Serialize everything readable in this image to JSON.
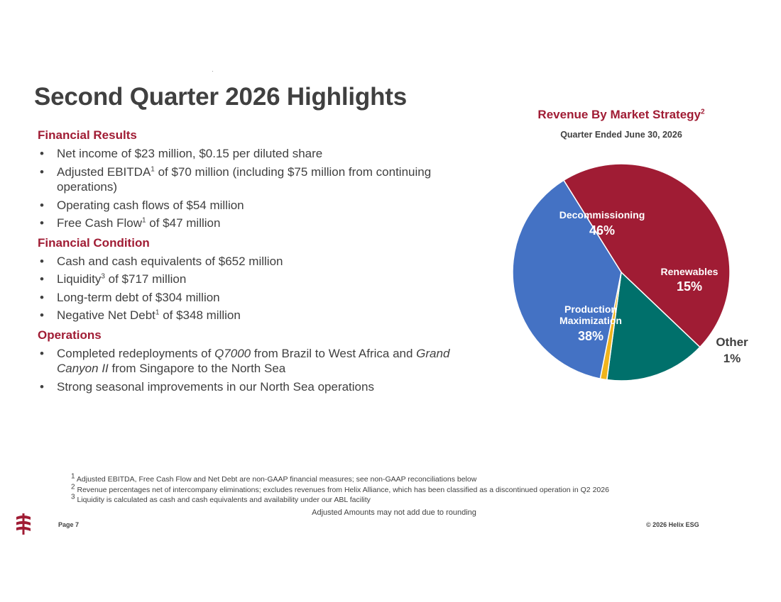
{
  "page": {
    "title": "Second Quarter 2026 Highlights"
  },
  "financial_results": {
    "heading": "Financial Results",
    "bullets": [
      {
        "text": "Net income of $23 million, $0.15 per diluted share"
      },
      {
        "pre": "Adjusted EBITDA",
        "sup": "1",
        "post": " of $70 million (including $75 million from continuing operations)"
      },
      {
        "text": "Operating cash flows of $54 million"
      },
      {
        "pre": "Free Cash Flow",
        "sup": "1",
        "post": " of $47 million"
      }
    ]
  },
  "financial_condition": {
    "heading": "Financial Condition",
    "bullets": [
      {
        "text": "Cash and cash equivalents of $652 million"
      },
      {
        "pre": "Liquidity",
        "sup": "3",
        "post": " of $717 million"
      },
      {
        "text": "Long-term debt of $304 million"
      },
      {
        "pre": "Negative Net Debt",
        "sup": "1",
        "post": " of $348 million"
      }
    ]
  },
  "operations": {
    "heading": "Operations",
    "bullets": [
      {
        "pre": "Completed redeployments of ",
        "em1": "Q7000",
        "mid": " from Brazil to West Africa and ",
        "em2": "Grand Canyon II",
        "post": " from Singapore to the North Sea"
      },
      {
        "text": "Strong seasonal improvements in our North Sea operations"
      }
    ]
  },
  "chart_data": {
    "type": "pie",
    "title": "Revenue By Market Strategy",
    "title_sup": "2",
    "subtitle": "Quarter Ended June 30, 2026",
    "slices": [
      {
        "label": "Decommissioning",
        "value": 46,
        "display": "46%",
        "color": "#a01c34"
      },
      {
        "label": "Renewables",
        "value": 15,
        "display": "15%",
        "color": "#00706b"
      },
      {
        "label": "Other",
        "value": 1,
        "display": "1%",
        "color": "#f0b41c"
      },
      {
        "label": "Production Maximization",
        "value": 38,
        "display": "38%",
        "color": "#4472c4"
      }
    ]
  },
  "footnotes": [
    {
      "num": "1",
      "text": "Adjusted EBITDA, Free Cash Flow and Net Debt are non-GAAP financial measures; see non-GAAP reconciliations below"
    },
    {
      "num": "2",
      "text": "Revenue percentages net of intercompany eliminations; excludes revenues from Helix Alliance, which has been classified as a discontinued operation in Q2 2026"
    },
    {
      "num": "3",
      "text": "Liquidity is calculated as cash and cash equivalents and availability under our ABL facility"
    }
  ],
  "footer": {
    "rounding_note": "Adjusted Amounts may not add due to rounding",
    "page_label": "Page 7",
    "copyright": "© 2026 Helix ESG"
  },
  "logo": {
    "icon": "helix-logo-icon",
    "color": "#a01c34"
  }
}
